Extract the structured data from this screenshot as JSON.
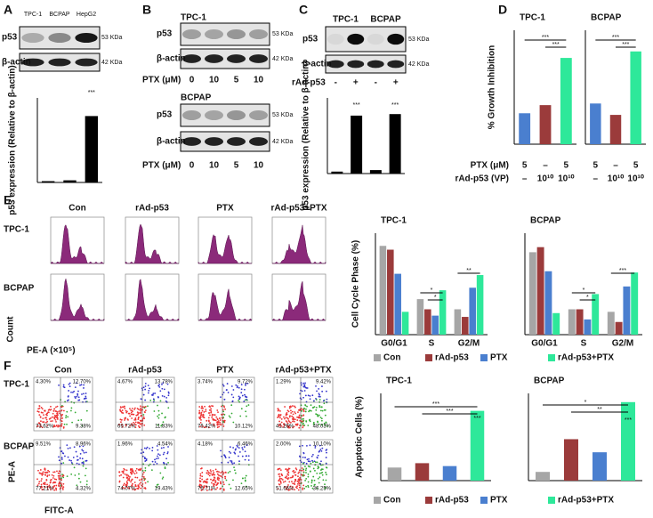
{
  "panel_labels": [
    "A",
    "B",
    "C",
    "D",
    "E",
    "F"
  ],
  "panel_a": {
    "lanes": [
      "TPC-1",
      "BCPAP",
      "HepG2"
    ],
    "rows": [
      "p53",
      "β-actin"
    ],
    "sizes": [
      "53 KDa",
      "42 KDa"
    ]
  },
  "panel_b": {
    "blots": [
      {
        "cell": "TPC-1",
        "rows": [
          "p53",
          "β-actin"
        ],
        "sizes": [
          "53 KDa",
          "42 KDa"
        ]
      },
      {
        "cell": "BCPAP",
        "rows": [
          "p53",
          "β-actin"
        ],
        "sizes": [
          "53 KDa",
          "42 KDa"
        ]
      }
    ],
    "treatment_label": "PTX (μM)",
    "doses": [
      "0",
      "10",
      "5",
      "10"
    ]
  },
  "panel_c": {
    "cells": [
      "TPC-1",
      "BCPAP"
    ],
    "rows": [
      "p53",
      "β-actin"
    ],
    "sizes": [
      "53 KDa",
      "42 KDa"
    ],
    "treatment_label": "rAd-p53",
    "signs": [
      "-",
      "+",
      "-",
      "+"
    ]
  },
  "panel_d": {
    "conditions": [
      {
        "label": "PTX (μM)",
        "levels": [
          "5",
          "–",
          "5"
        ]
      },
      {
        "label": "rAd-p53 (VP)",
        "levels": [
          "–",
          "10¹⁰",
          "10¹⁰"
        ]
      }
    ]
  },
  "panel_e": {
    "conditions": [
      "Con",
      "rAd-p53",
      "PTX",
      "rAd-p53+PTX"
    ],
    "cells": [
      "TPC-1",
      "BCPAP"
    ],
    "y_label": "Count",
    "x_label": "PE-A (×10⁵)"
  },
  "panel_f": {
    "conditions": [
      "Con",
      "rAd-p53",
      "PTX",
      "rAd-p53+PTX"
    ],
    "cells": [
      "TPC-1",
      "BCPAP"
    ],
    "y_label": "PE-A",
    "x_label": "FITC-A",
    "quadrants": [
      [
        [
          "4.30%",
          "12.70%",
          "73.62%",
          "9.38%"
        ],
        [
          "4.67%",
          "13.78%",
          "69.72%",
          "11.83%"
        ],
        [
          "3.74%",
          "9.72%",
          "76.42%",
          "10.12%"
        ],
        [
          "1.29%",
          "9.42%",
          "41.26%",
          "48.03%"
        ]
      ],
      [
        [
          "9.51%",
          "8.96%",
          "77.21%",
          "4.32%"
        ],
        [
          "1.96%",
          "4.54%",
          "74.07%",
          "19.43%"
        ],
        [
          "4.18%",
          "6.46%",
          "76.71%",
          "12.65%"
        ],
        [
          "2.00%",
          "10.10%",
          "51.66%",
          "36.25%"
        ]
      ]
    ]
  },
  "chart_data": [
    {
      "type": "bar",
      "y_label": "p53 expression (Relative to β-actin)",
      "values": [
        1,
        2,
        78
      ],
      "color": "#000000",
      "ylim": [
        0,
        100
      ],
      "annotations": [
        "***"
      ]
    },
    {
      "type": "bar",
      "y_label": "p53 expression (Relative to β-actin)",
      "values": [
        0.5,
        19,
        1,
        19.5
      ],
      "color": "#000000",
      "ylim": [
        0,
        25
      ],
      "annotations": [
        "***",
        "***"
      ]
    },
    {
      "type": "bar",
      "title": "TPC-1",
      "y_label": "% Growth Inhibition",
      "values": [
        19,
        24,
        53
      ],
      "colors": [
        "#4a7fcf",
        "#9b3b3b",
        "#2ee89a"
      ],
      "ylim": [
        0,
        70
      ],
      "annotations": [
        "***",
        "***"
      ]
    },
    {
      "type": "bar",
      "title": "BCPAP",
      "values": [
        25,
        18,
        57
      ],
      "colors": [
        "#4a7fcf",
        "#9b3b3b",
        "#2ee89a"
      ],
      "ylim": [
        0,
        70
      ],
      "annotations": [
        "***",
        "***"
      ]
    },
    {
      "type": "bar",
      "title": "TPC-1",
      "y_label": "Cell Cycle Phase (%)",
      "categories": [
        "G0/G1",
        "S",
        "G2/M"
      ],
      "ylim": [
        0,
        80
      ],
      "series": [
        {
          "name": "Con",
          "color": "#a6a6a6",
          "values": [
            70,
            28,
            20
          ]
        },
        {
          "name": "rAd-p53",
          "color": "#9b3b3b",
          "values": [
            67,
            20,
            14
          ]
        },
        {
          "name": "PTX",
          "color": "#4a7fcf",
          "values": [
            48,
            15,
            37
          ]
        },
        {
          "name": "rAd-p53+PTX",
          "color": "#2ee89a",
          "values": [
            18,
            35,
            47
          ]
        }
      ],
      "annotations": [
        "*",
        "*",
        "**"
      ]
    },
    {
      "type": "bar",
      "title": "BCPAP",
      "categories": [
        "G0/G1",
        "S",
        "G2/M"
      ],
      "ylim": [
        0,
        80
      ],
      "series": [
        {
          "name": "Con",
          "color": "#a6a6a6",
          "values": [
            65,
            20,
            18
          ]
        },
        {
          "name": "rAd-p53",
          "color": "#9b3b3b",
          "values": [
            69,
            20,
            10
          ]
        },
        {
          "name": "PTX",
          "color": "#4a7fcf",
          "values": [
            50,
            12,
            38
          ]
        },
        {
          "name": "rAd-p53+PTX",
          "color": "#2ee89a",
          "values": [
            17,
            32,
            49
          ]
        }
      ],
      "annotations": [
        "*",
        "*",
        "***"
      ]
    },
    {
      "type": "bar",
      "title": "TPC-1",
      "y_label": "Apoptotic Cells (%)",
      "ylim": [
        0,
        60
      ],
      "series": [
        {
          "name": "Con",
          "color": "#a6a6a6",
          "values": [
            9
          ]
        },
        {
          "name": "rAd-p53",
          "color": "#9b3b3b",
          "values": [
            12
          ]
        },
        {
          "name": "PTX",
          "color": "#4a7fcf",
          "values": [
            10
          ]
        },
        {
          "name": "rAd-p53+PTX",
          "color": "#2ee89a",
          "values": [
            48
          ]
        }
      ],
      "annotations": [
        "***",
        "***",
        "***"
      ]
    },
    {
      "type": "bar",
      "title": "BCPAP",
      "ylim": [
        0,
        40
      ],
      "series": [
        {
          "name": "Con",
          "color": "#a6a6a6",
          "values": [
            4
          ]
        },
        {
          "name": "rAd-p53",
          "color": "#9b3b3b",
          "values": [
            19
          ]
        },
        {
          "name": "PTX",
          "color": "#4a7fcf",
          "values": [
            13
          ]
        },
        {
          "name": "rAd-p53+PTX",
          "color": "#2ee89a",
          "values": [
            36
          ]
        }
      ],
      "annotations": [
        "*",
        "**",
        "***"
      ]
    }
  ]
}
